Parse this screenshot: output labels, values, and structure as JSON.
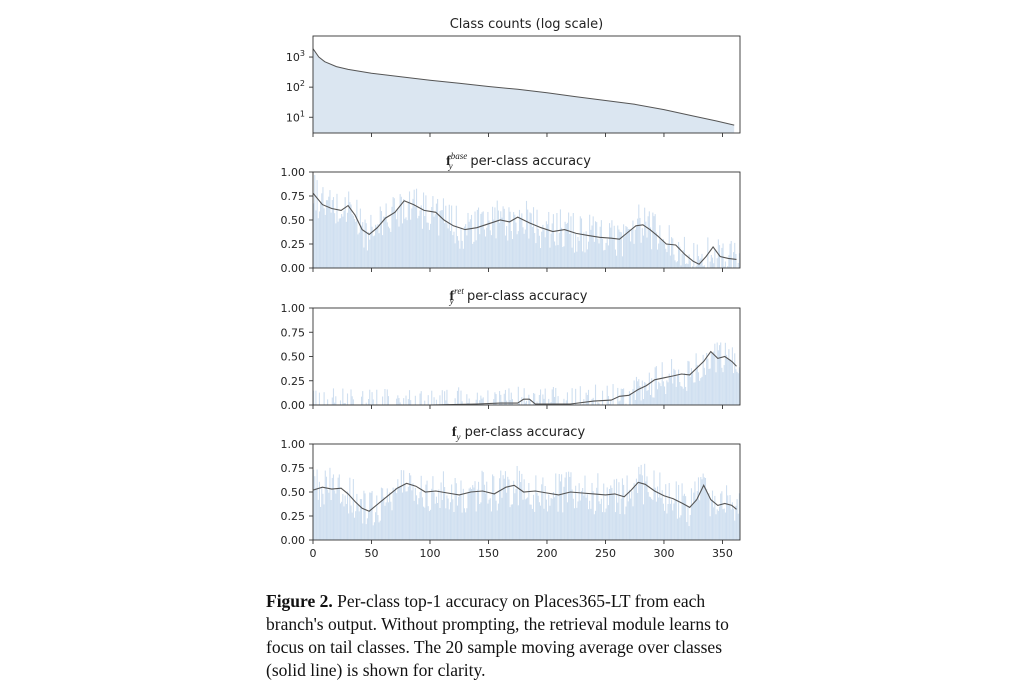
{
  "figure": {
    "caption_label": "Figure 2.",
    "caption_text": "Per-class top-1 accuracy on Places365-LT from each branch's output. Without prompting, the retrieval module learns to focus on tail classes. The 20 sample moving average over classes (solid line) is shown for clarity."
  },
  "chart_data": [
    {
      "type": "area",
      "title": "Class counts (log scale)",
      "xlabel": "",
      "ylabel": "",
      "log_y": true,
      "ylim": [
        3,
        5000
      ],
      "xlim": [
        0,
        365
      ],
      "ytick_labels": [
        {
          "base": "10",
          "exp": "3",
          "v": 1000
        },
        {
          "base": "10",
          "exp": "2",
          "v": 100
        },
        {
          "base": "10",
          "exp": "1",
          "v": 10
        }
      ],
      "xticks": [],
      "curve_points": [
        [
          0,
          1900
        ],
        [
          5,
          1000
        ],
        [
          10,
          700
        ],
        [
          20,
          480
        ],
        [
          30,
          390
        ],
        [
          50,
          290
        ],
        [
          75,
          220
        ],
        [
          100,
          170
        ],
        [
          125,
          135
        ],
        [
          150,
          105
        ],
        [
          175,
          85
        ],
        [
          200,
          65
        ],
        [
          225,
          48
        ],
        [
          250,
          36
        ],
        [
          275,
          27
        ],
        [
          300,
          18
        ],
        [
          325,
          11
        ],
        [
          345,
          7.5
        ],
        [
          360,
          5.5
        ]
      ],
      "fill_color": "#dbe6f1",
      "line_color": "#555555"
    },
    {
      "type": "line",
      "title_symbol": "f",
      "title_sub": "y",
      "title_sup": "base",
      "title_text": " per-class accuracy",
      "xlabel": "",
      "ylabel": "",
      "ylim": [
        0,
        1
      ],
      "xlim": [
        0,
        365
      ],
      "yticks": [
        "0.00",
        "0.25",
        "0.50",
        "0.75",
        "1.00"
      ],
      "moving_average": [
        [
          0,
          0.78
        ],
        [
          8,
          0.66
        ],
        [
          16,
          0.62
        ],
        [
          24,
          0.6
        ],
        [
          30,
          0.65
        ],
        [
          36,
          0.55
        ],
        [
          42,
          0.4
        ],
        [
          48,
          0.35
        ],
        [
          55,
          0.42
        ],
        [
          62,
          0.52
        ],
        [
          70,
          0.58
        ],
        [
          78,
          0.7
        ],
        [
          86,
          0.66
        ],
        [
          95,
          0.6
        ],
        [
          105,
          0.58
        ],
        [
          112,
          0.5
        ],
        [
          120,
          0.44
        ],
        [
          130,
          0.4
        ],
        [
          140,
          0.42
        ],
        [
          150,
          0.46
        ],
        [
          160,
          0.5
        ],
        [
          168,
          0.48
        ],
        [
          175,
          0.53
        ],
        [
          185,
          0.47
        ],
        [
          195,
          0.42
        ],
        [
          205,
          0.38
        ],
        [
          215,
          0.4
        ],
        [
          225,
          0.36
        ],
        [
          235,
          0.34
        ],
        [
          245,
          0.32
        ],
        [
          255,
          0.31
        ],
        [
          262,
          0.3
        ],
        [
          270,
          0.38
        ],
        [
          276,
          0.44
        ],
        [
          282,
          0.45
        ],
        [
          288,
          0.4
        ],
        [
          295,
          0.33
        ],
        [
          302,
          0.25
        ],
        [
          310,
          0.24
        ],
        [
          318,
          0.14
        ],
        [
          325,
          0.07
        ],
        [
          330,
          0.04
        ],
        [
          336,
          0.12
        ],
        [
          342,
          0.22
        ],
        [
          348,
          0.12
        ],
        [
          355,
          0.1
        ],
        [
          362,
          0.09
        ]
      ],
      "bar_noise": 0.22,
      "fill_color": "#dbe6f1",
      "line_color": "#555555"
    },
    {
      "type": "line",
      "title_symbol": "f",
      "title_sub": "y",
      "title_sup": "ret",
      "title_text": " per-class accuracy",
      "xlabel": "",
      "ylabel": "",
      "ylim": [
        0,
        1
      ],
      "xlim": [
        0,
        365
      ],
      "yticks": [
        "0.00",
        "0.25",
        "0.50",
        "0.75",
        "1.00"
      ],
      "moving_average": [
        [
          0,
          0.0
        ],
        [
          100,
          0.0
        ],
        [
          140,
          0.01
        ],
        [
          160,
          0.02
        ],
        [
          175,
          0.02
        ],
        [
          180,
          0.06
        ],
        [
          185,
          0.06
        ],
        [
          190,
          0.01
        ],
        [
          220,
          0.01
        ],
        [
          240,
          0.04
        ],
        [
          255,
          0.05
        ],
        [
          262,
          0.09
        ],
        [
          270,
          0.1
        ],
        [
          278,
          0.16
        ],
        [
          285,
          0.2
        ],
        [
          292,
          0.26
        ],
        [
          300,
          0.28
        ],
        [
          308,
          0.3
        ],
        [
          315,
          0.32
        ],
        [
          322,
          0.31
        ],
        [
          328,
          0.38
        ],
        [
          334,
          0.45
        ],
        [
          340,
          0.55
        ],
        [
          346,
          0.48
        ],
        [
          352,
          0.5
        ],
        [
          358,
          0.45
        ],
        [
          362,
          0.4
        ]
      ],
      "bar_noise": 0.18,
      "fill_color": "#dbe6f1",
      "line_color": "#555555"
    },
    {
      "type": "line",
      "title_symbol": "f",
      "title_sub": "y",
      "title_sup": "",
      "title_text": " per-class accuracy",
      "xlabel": "",
      "ylabel": "",
      "ylim": [
        0,
        1
      ],
      "xlim": [
        0,
        365
      ],
      "yticks": [
        "0.00",
        "0.25",
        "0.50",
        "0.75",
        "1.00"
      ],
      "xticks": [
        "0",
        "50",
        "100",
        "150",
        "200",
        "250",
        "300",
        "350"
      ],
      "moving_average": [
        [
          0,
          0.52
        ],
        [
          8,
          0.55
        ],
        [
          16,
          0.53
        ],
        [
          24,
          0.54
        ],
        [
          30,
          0.48
        ],
        [
          36,
          0.4
        ],
        [
          42,
          0.33
        ],
        [
          48,
          0.3
        ],
        [
          56,
          0.38
        ],
        [
          64,
          0.46
        ],
        [
          72,
          0.54
        ],
        [
          80,
          0.59
        ],
        [
          88,
          0.56
        ],
        [
          96,
          0.5
        ],
        [
          105,
          0.51
        ],
        [
          115,
          0.49
        ],
        [
          125,
          0.47
        ],
        [
          135,
          0.5
        ],
        [
          145,
          0.51
        ],
        [
          155,
          0.48
        ],
        [
          165,
          0.55
        ],
        [
          172,
          0.57
        ],
        [
          180,
          0.5
        ],
        [
          190,
          0.51
        ],
        [
          200,
          0.49
        ],
        [
          210,
          0.47
        ],
        [
          220,
          0.5
        ],
        [
          230,
          0.49
        ],
        [
          240,
          0.48
        ],
        [
          250,
          0.47
        ],
        [
          258,
          0.48
        ],
        [
          266,
          0.45
        ],
        [
          272,
          0.52
        ],
        [
          278,
          0.6
        ],
        [
          284,
          0.58
        ],
        [
          292,
          0.51
        ],
        [
          300,
          0.46
        ],
        [
          308,
          0.43
        ],
        [
          316,
          0.38
        ],
        [
          322,
          0.34
        ],
        [
          328,
          0.42
        ],
        [
          334,
          0.57
        ],
        [
          340,
          0.42
        ],
        [
          346,
          0.36
        ],
        [
          352,
          0.38
        ],
        [
          358,
          0.36
        ],
        [
          362,
          0.32
        ]
      ],
      "bar_noise": 0.22,
      "fill_color": "#dbe6f1",
      "line_color": "#555555"
    }
  ]
}
